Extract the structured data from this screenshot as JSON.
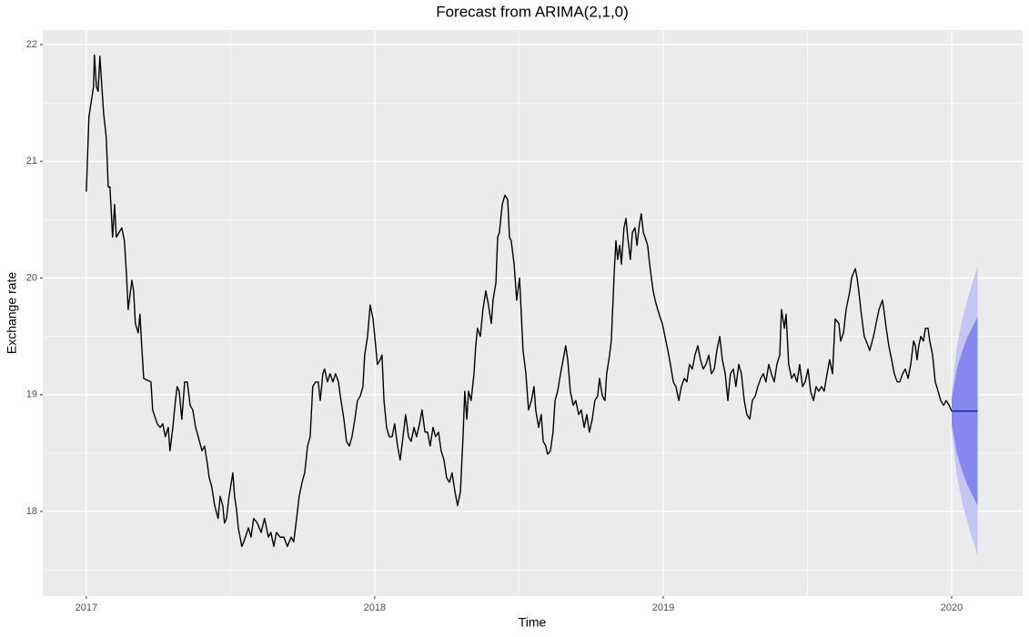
{
  "chart_data": {
    "type": "forecast",
    "title": "Forecast from ARIMA(2,1,0)",
    "x_label": "Time",
    "y_label": "Exchange rate",
    "xlim": [
      2016.849,
      2020.246
    ],
    "ylim": [
      17.275,
      22.125
    ],
    "xticks": [
      2017,
      2018,
      2019,
      2020
    ],
    "yticks": [
      18,
      19,
      20,
      21,
      22
    ],
    "grid": true,
    "color": "#000000",
    "x": [
      2017.0,
      2017.009,
      2017.025,
      2017.028,
      2017.035,
      2017.041,
      2017.047,
      2017.06,
      2017.069,
      2017.076,
      2017.082,
      2017.091,
      2017.098,
      2017.104,
      2017.123,
      2017.132,
      2017.139,
      2017.145,
      2017.158,
      2017.164,
      2017.17,
      2017.18,
      2017.186,
      2017.192,
      2017.199,
      2017.224,
      2017.23,
      2017.246,
      2017.256,
      2017.265,
      2017.274,
      2017.284,
      2017.29,
      2017.3,
      2017.309,
      2017.315,
      2017.322,
      2017.331,
      2017.341,
      2017.35,
      2017.36,
      2017.369,
      2017.379,
      2017.388,
      2017.401,
      2017.41,
      2017.42,
      2017.426,
      2017.435,
      2017.445,
      2017.457,
      2017.464,
      2017.473,
      2017.479,
      2017.486,
      2017.495,
      2017.508,
      2017.514,
      2017.521,
      2017.527,
      2017.533,
      2017.539,
      2017.546,
      2017.562,
      2017.571,
      2017.58,
      2017.593,
      2017.606,
      2017.618,
      2017.631,
      2017.64,
      2017.65,
      2017.659,
      2017.672,
      2017.685,
      2017.697,
      2017.71,
      2017.719,
      2017.729,
      2017.738,
      2017.748,
      2017.757,
      2017.767,
      2017.776,
      2017.785,
      2017.795,
      2017.804,
      2017.811,
      2017.82,
      2017.826,
      2017.836,
      2017.845,
      2017.855,
      2017.864,
      2017.874,
      2017.883,
      2017.893,
      2017.902,
      2017.912,
      2017.921,
      2017.931,
      2017.94,
      2017.95,
      2017.959,
      2017.965,
      2017.975,
      2017.984,
      2017.994,
      2018.0,
      2018.009,
      2018.019,
      2018.025,
      2018.032,
      2018.041,
      2018.05,
      2018.06,
      2018.069,
      2018.079,
      2018.088,
      2018.098,
      2018.107,
      2018.117,
      2018.126,
      2018.136,
      2018.145,
      2018.155,
      2018.164,
      2018.174,
      2018.183,
      2018.192,
      2018.202,
      2018.211,
      2018.221,
      2018.23,
      2018.24,
      2018.249,
      2018.259,
      2018.268,
      2018.278,
      2018.287,
      2018.297,
      2018.306,
      2018.312,
      2018.319,
      2018.325,
      2018.334,
      2018.344,
      2018.35,
      2018.356,
      2018.366,
      2018.375,
      2018.385,
      2018.394,
      2018.404,
      2018.41,
      2018.42,
      2018.426,
      2018.432,
      2018.442,
      2018.451,
      2018.461,
      2018.467,
      2018.473,
      2018.483,
      2018.492,
      2018.502,
      2018.508,
      2018.514,
      2018.524,
      2018.533,
      2018.543,
      2018.552,
      2018.558,
      2018.568,
      2018.577,
      2018.584,
      2018.593,
      2018.599,
      2018.609,
      2018.618,
      2018.625,
      2018.634,
      2018.644,
      2018.653,
      2018.662,
      2018.669,
      2018.678,
      2018.688,
      2018.697,
      2018.707,
      2018.716,
      2018.726,
      2018.735,
      2018.744,
      2018.754,
      2018.763,
      2018.773,
      2018.779,
      2018.789,
      2018.798,
      2018.804,
      2018.814,
      2018.82,
      2018.83,
      2018.836,
      2018.842,
      2018.849,
      2018.855,
      2018.864,
      2018.871,
      2018.877,
      2018.886,
      2018.893,
      2018.902,
      2018.909,
      2018.918,
      2018.924,
      2018.931,
      2018.937,
      2018.946,
      2018.953,
      2018.959,
      2018.965,
      2018.972,
      2018.981,
      2018.991,
      2018.997,
      2019.006,
      2019.016,
      2019.025,
      2019.035,
      2019.044,
      2019.054,
      2019.063,
      2019.073,
      2019.082,
      2019.091,
      2019.101,
      2019.11,
      2019.12,
      2019.129,
      2019.139,
      2019.148,
      2019.158,
      2019.167,
      2019.177,
      2019.186,
      2019.196,
      2019.205,
      2019.215,
      2019.224,
      2019.233,
      2019.243,
      2019.252,
      2019.262,
      2019.271,
      2019.281,
      2019.29,
      2019.3,
      2019.309,
      2019.319,
      2019.328,
      2019.338,
      2019.347,
      2019.356,
      2019.366,
      2019.375,
      2019.385,
      2019.394,
      2019.404,
      2019.41,
      2019.42,
      2019.426,
      2019.435,
      2019.445,
      2019.454,
      2019.464,
      2019.473,
      2019.483,
      2019.492,
      2019.502,
      2019.511,
      2019.521,
      2019.53,
      2019.539,
      2019.549,
      2019.558,
      2019.568,
      2019.577,
      2019.587,
      2019.596,
      2019.609,
      2019.615,
      2019.625,
      2019.634,
      2019.647,
      2019.653,
      2019.659,
      2019.666,
      2019.672,
      2019.678,
      2019.685,
      2019.691,
      2019.697,
      2019.71,
      2019.716,
      2019.729,
      2019.738,
      2019.748,
      2019.76,
      2019.767,
      2019.773,
      2019.782,
      2019.792,
      2019.801,
      2019.811,
      2019.82,
      2019.83,
      2019.839,
      2019.849,
      2019.858,
      2019.868,
      2019.874,
      2019.88,
      2019.886,
      2019.893,
      2019.902,
      2019.909,
      2019.918,
      2019.924,
      2019.934,
      2019.943,
      2019.953,
      2019.962,
      2019.972,
      2019.981,
      2019.991,
      2020.0
    ],
    "values": [
      20.74,
      21.38,
      21.64,
      21.91,
      21.64,
      21.6,
      21.9,
      21.41,
      21.21,
      20.78,
      20.78,
      20.35,
      20.63,
      20.35,
      20.43,
      20.32,
      20.04,
      19.73,
      19.98,
      19.89,
      19.61,
      19.53,
      19.69,
      19.42,
      19.14,
      19.11,
      18.87,
      18.75,
      18.72,
      18.75,
      18.64,
      18.72,
      18.52,
      18.72,
      18.95,
      19.07,
      19.03,
      18.79,
      19.11,
      19.11,
      18.91,
      18.87,
      18.72,
      18.64,
      18.52,
      18.56,
      18.4,
      18.29,
      18.21,
      18.05,
      17.94,
      18.13,
      18.05,
      17.9,
      17.94,
      18.13,
      18.33,
      18.13,
      18.01,
      17.86,
      17.78,
      17.7,
      17.74,
      17.86,
      17.78,
      17.94,
      17.9,
      17.82,
      17.94,
      17.78,
      17.82,
      17.7,
      17.82,
      17.78,
      17.78,
      17.7,
      17.78,
      17.74,
      17.94,
      18.13,
      18.25,
      18.33,
      18.56,
      18.64,
      19.07,
      19.11,
      19.11,
      18.95,
      19.18,
      19.22,
      19.11,
      19.18,
      19.11,
      19.18,
      19.11,
      18.95,
      18.79,
      18.6,
      18.56,
      18.64,
      18.79,
      18.95,
      18.99,
      19.07,
      19.34,
      19.5,
      19.77,
      19.65,
      19.5,
      19.26,
      19.3,
      19.34,
      18.95,
      18.72,
      18.64,
      18.64,
      18.75,
      18.56,
      18.44,
      18.64,
      18.83,
      18.64,
      18.6,
      18.72,
      18.64,
      18.75,
      18.87,
      18.68,
      18.68,
      18.56,
      18.72,
      18.64,
      18.68,
      18.52,
      18.44,
      18.29,
      18.25,
      18.33,
      18.17,
      18.05,
      18.17,
      18.64,
      19.03,
      18.79,
      19.03,
      18.95,
      19.18,
      19.42,
      19.57,
      19.5,
      19.73,
      19.89,
      19.77,
      19.61,
      19.81,
      19.96,
      20.35,
      20.39,
      20.63,
      20.71,
      20.67,
      20.35,
      20.32,
      20.12,
      19.81,
      20.0,
      19.69,
      19.38,
      19.18,
      18.87,
      18.95,
      19.07,
      18.87,
      18.72,
      18.83,
      18.6,
      18.56,
      18.49,
      18.52,
      18.68,
      18.95,
      19.03,
      19.18,
      19.3,
      19.42,
      19.3,
      19.03,
      18.91,
      18.95,
      18.83,
      18.87,
      18.72,
      18.83,
      18.68,
      18.79,
      18.95,
      18.99,
      19.14,
      18.99,
      18.95,
      19.18,
      19.34,
      19.46,
      20.04,
      20.32,
      20.16,
      20.28,
      20.12,
      20.43,
      20.51,
      20.35,
      20.16,
      20.39,
      20.43,
      20.28,
      20.47,
      20.55,
      20.39,
      20.35,
      20.28,
      20.12,
      20.0,
      19.89,
      19.81,
      19.73,
      19.65,
      19.61,
      19.5,
      19.38,
      19.26,
      19.11,
      19.07,
      18.95,
      19.07,
      19.14,
      19.11,
      19.26,
      19.22,
      19.34,
      19.42,
      19.3,
      19.22,
      19.26,
      19.34,
      19.18,
      19.22,
      19.38,
      19.5,
      19.3,
      19.18,
      18.95,
      19.18,
      19.22,
      19.07,
      19.26,
      19.18,
      18.95,
      18.83,
      18.79,
      18.95,
      18.99,
      19.07,
      19.14,
      19.18,
      19.11,
      19.26,
      19.18,
      19.11,
      19.26,
      19.34,
      19.73,
      19.57,
      19.69,
      19.26,
      19.14,
      19.18,
      19.11,
      19.26,
      19.07,
      19.11,
      19.22,
      19.03,
      18.95,
      19.07,
      19.03,
      19.07,
      19.03,
      19.18,
      19.3,
      19.18,
      19.65,
      19.61,
      19.46,
      19.53,
      19.73,
      19.89,
      20.0,
      20.04,
      20.08,
      20.0,
      19.89,
      19.73,
      19.61,
      19.5,
      19.42,
      19.38,
      19.5,
      19.61,
      19.73,
      19.81,
      19.69,
      19.57,
      19.42,
      19.3,
      19.18,
      19.11,
      19.11,
      19.18,
      19.22,
      19.14,
      19.26,
      19.46,
      19.42,
      19.3,
      19.42,
      19.5,
      19.46,
      19.57,
      19.57,
      19.46,
      19.34,
      19.11,
      19.03,
      18.95,
      18.91,
      18.95,
      18.91,
      18.86
    ],
    "forecast": {
      "x": [
        2020.0,
        2020.018,
        2020.036,
        2020.054,
        2020.072,
        2020.09
      ],
      "mean": [
        18.86,
        18.86,
        18.86,
        18.86,
        18.86,
        18.86
      ],
      "lower80": [
        18.75,
        18.5,
        18.35,
        18.23,
        18.14,
        18.05
      ],
      "upper80": [
        18.97,
        19.22,
        19.37,
        19.49,
        19.58,
        19.67
      ],
      "lower95": [
        18.69,
        18.31,
        18.08,
        17.91,
        17.76,
        17.62
      ],
      "upper95": [
        19.03,
        19.41,
        19.64,
        19.81,
        19.96,
        20.1
      ],
      "mean_color": "#0000ff",
      "color80": "#8686f0",
      "color95": "#c6c6f4"
    }
  }
}
